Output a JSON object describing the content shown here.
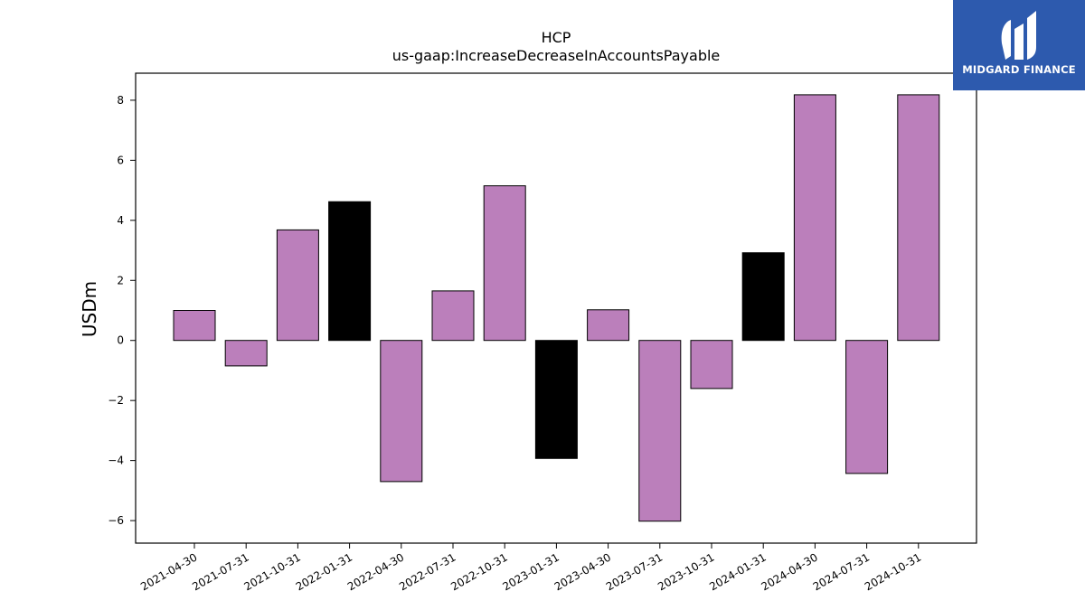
{
  "chart_data": {
    "type": "bar",
    "title": "HCP",
    "subtitle": "us-gaap:IncreaseDecreaseInAccountsPayable",
    "xlabel": "",
    "ylabel": "USDm",
    "ylim": [
      -6.75,
      8.9
    ],
    "yticks": [
      8,
      6,
      4,
      2,
      0,
      -2,
      -4,
      -6
    ],
    "ytick_labels": [
      "8",
      "6",
      "4",
      "2",
      "0",
      "−2",
      "−4",
      "−6"
    ],
    "grid": false,
    "categories": [
      "2021-04-30",
      "2021-07-31",
      "2021-10-31",
      "2022-01-31",
      "2022-04-30",
      "2022-07-31",
      "2022-10-31",
      "2023-01-31",
      "2023-04-30",
      "2023-07-31",
      "2023-10-31",
      "2024-01-31",
      "2024-04-30",
      "2024-07-31",
      "2024-10-31"
    ],
    "values": [
      1.0,
      -0.85,
      3.68,
      4.62,
      -4.7,
      1.65,
      5.15,
      -3.93,
      1.02,
      -6.02,
      -1.6,
      2.92,
      8.18,
      -4.43,
      8.18
    ],
    "bar_colors": [
      "#bb7fbb",
      "#bb7fbb",
      "#bb7fbb",
      "#000000",
      "#bb7fbb",
      "#bb7fbb",
      "#bb7fbb",
      "#000000",
      "#bb7fbb",
      "#bb7fbb",
      "#bb7fbb",
      "#000000",
      "#bb7fbb",
      "#bb7fbb",
      "#bb7fbb"
    ]
  },
  "colors": {
    "bar_default": "#bb7fbb",
    "bar_highlight": "#000000",
    "logo_bg": "#2d5aae"
  },
  "logo": {
    "text": "MIDGARD FINANCE"
  }
}
